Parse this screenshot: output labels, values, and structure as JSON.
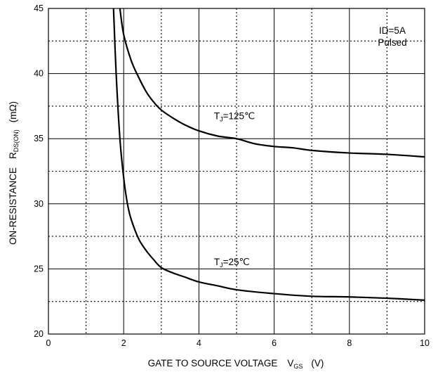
{
  "chart_data": {
    "type": "line",
    "title": "",
    "xlabel": "GATE TO SOURCE VOLTAGE",
    "xlabel_symbol": "V",
    "xlabel_symbol_sub": "GS",
    "xlabel_unit": "(V)",
    "ylabel": "ON-RESISTANCE",
    "ylabel_symbol": "R",
    "ylabel_symbol_sub": "DS(ON)",
    "ylabel_unit": "(mΩ)",
    "xlim": [
      0,
      10
    ],
    "ylim": [
      20,
      45
    ],
    "x_ticks": [
      "0",
      "2",
      "4",
      "6",
      "8",
      "10"
    ],
    "y_ticks": [
      "20",
      "25",
      "30",
      "35",
      "40",
      "45"
    ],
    "grid": "solid major lines, dotted minor lines",
    "annotation": [
      "ID=5A",
      "Pulsed"
    ],
    "series": [
      {
        "label_prefix": "T",
        "label_sub": "J",
        "label_suffix": "=125℃",
        "label_pos": [
          4.4,
          36.5
        ],
        "x": [
          1.9,
          2.0,
          2.2,
          2.4,
          2.6,
          2.8,
          3.0,
          3.3,
          3.6,
          4.0,
          4.5,
          5.0,
          5.5,
          6.0,
          6.5,
          7.0,
          8.0,
          9.0,
          10.0
        ],
        "y": [
          45.0,
          43.0,
          41.0,
          39.7,
          38.6,
          37.8,
          37.2,
          36.6,
          36.1,
          35.6,
          35.2,
          35.0,
          34.6,
          34.4,
          34.3,
          34.1,
          33.9,
          33.8,
          33.6
        ]
      },
      {
        "label_prefix": "T",
        "label_sub": "J",
        "label_suffix": "=25℃",
        "label_pos": [
          4.4,
          25.3
        ],
        "x": [
          1.73,
          1.8,
          1.9,
          2.0,
          2.1,
          2.2,
          2.4,
          2.6,
          2.8,
          3.0,
          3.3,
          3.6,
          4.0,
          4.5,
          5.0,
          6.0,
          7.0,
          8.0,
          9.0,
          10.0
        ],
        "y": [
          45.0,
          40.0,
          35.0,
          32.0,
          30.0,
          28.8,
          27.3,
          26.4,
          25.7,
          25.1,
          24.7,
          24.4,
          24.0,
          23.7,
          23.4,
          23.1,
          22.9,
          22.85,
          22.75,
          22.6
        ]
      }
    ]
  }
}
